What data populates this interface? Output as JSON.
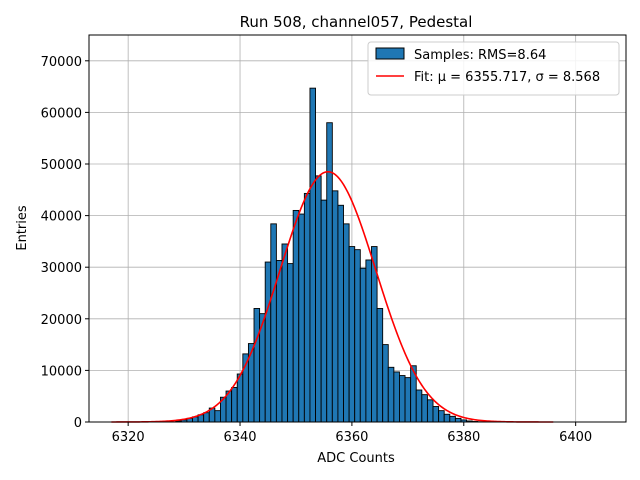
{
  "chart_data": {
    "type": "bar",
    "title": "Run 508, channel057, Pedestal",
    "xlabel": "ADC Counts",
    "ylabel": "Entries",
    "xlim": [
      6313,
      6409
    ],
    "ylim": [
      0,
      75000
    ],
    "xticks": [
      6320,
      6340,
      6360,
      6380,
      6400
    ],
    "yticks": [
      0,
      10000,
      20000,
      30000,
      40000,
      50000,
      60000,
      70000
    ],
    "grid": true,
    "legend_position": "top-right",
    "bar_width": 1,
    "bar_color": "#1f77b4",
    "fit_color": "#ff0000",
    "series": [
      {
        "name": "Samples: RMS=8.64",
        "type": "bar",
        "x": [
          6329,
          6330,
          6331,
          6332,
          6333,
          6334,
          6335,
          6336,
          6337,
          6338,
          6339,
          6340,
          6341,
          6342,
          6343,
          6344,
          6345,
          6346,
          6347,
          6348,
          6349,
          6350,
          6351,
          6352,
          6353,
          6354,
          6355,
          6356,
          6357,
          6358,
          6359,
          6360,
          6361,
          6362,
          6363,
          6364,
          6365,
          6366,
          6367,
          6368,
          6369,
          6370,
          6371,
          6372,
          6373,
          6374,
          6375,
          6376,
          6377,
          6378,
          6379,
          6380,
          6381,
          6382,
          6383
        ],
        "values": [
          200,
          400,
          700,
          1000,
          1400,
          1800,
          2700,
          2200,
          4800,
          6000,
          6700,
          9300,
          13200,
          15200,
          22000,
          21000,
          31000,
          38400,
          31300,
          34500,
          30700,
          41000,
          40300,
          44300,
          64700,
          47700,
          43000,
          58000,
          44800,
          42000,
          38400,
          34000,
          33400,
          29800,
          31400,
          34000,
          22000,
          15000,
          10600,
          9700,
          9000,
          8600,
          10900,
          6200,
          5300,
          4300,
          3000,
          2200,
          1500,
          1100,
          700,
          400,
          200,
          100,
          50
        ]
      },
      {
        "name": "Fit: μ = 6355.717, σ = 8.568",
        "type": "line",
        "mu": 6355.717,
        "sigma": 8.568,
        "amplitude": 48500,
        "x_range": [
          6317,
          6396
        ]
      }
    ]
  }
}
